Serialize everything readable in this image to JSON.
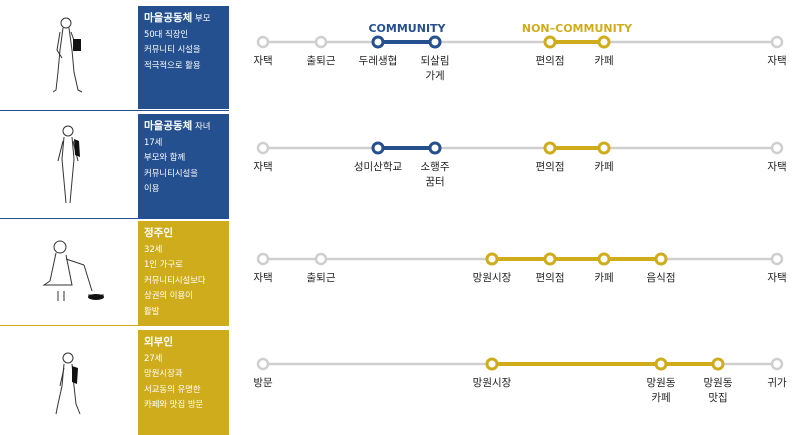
{
  "headers": {
    "community": "COMMUNITY",
    "noncommunity": "NON–COMMUNITY"
  },
  "colors": {
    "blue": "#25508f",
    "gold": "#cfac1c",
    "grey": "#cfcfcf",
    "text": "#222222"
  },
  "personas": [
    {
      "name": "마을공동체",
      "role": "부모",
      "lines": [
        "50대 직장인",
        "커뮤니티 시설을",
        "적극적으로 활용"
      ],
      "box_color": "blue",
      "icon": "walking-woman-with-bag-figure"
    },
    {
      "name": "마을공동체",
      "role": "자녀",
      "lines": [
        "17세",
        "부모와 함께",
        "커뮤니티시설을",
        "이용"
      ],
      "box_color": "blue",
      "icon": "standing-student-figure"
    },
    {
      "name": "정주인",
      "role": "",
      "lines": [
        "32세",
        "1인 가구로",
        "커뮤니티시설보다",
        "상권의 이용이",
        "활발"
      ],
      "box_color": "gold",
      "icon": "person-walking-dog-figure"
    },
    {
      "name": "외부인",
      "role": "",
      "lines": [
        "27세",
        "망원시장과",
        "서교동의 유명한",
        "카페와 맛집 방문"
      ],
      "box_color": "gold",
      "icon": "walking-visitor-figure"
    }
  ],
  "journeys": [
    {
      "stops": [
        {
          "label": "자택",
          "label2": "",
          "type": "grey"
        },
        {
          "label": "출퇴근",
          "label2": "",
          "type": "grey"
        },
        {
          "label": "두레생협",
          "label2": "",
          "type": "blue"
        },
        {
          "label": "되살림",
          "label2": "가게",
          "type": "blue"
        },
        {
          "label": "편의점",
          "label2": "",
          "type": "gold"
        },
        {
          "label": "카페",
          "label2": "",
          "type": "gold"
        },
        {
          "label": "자택",
          "label2": "",
          "type": "grey"
        }
      ]
    },
    {
      "stops": [
        {
          "label": "자택",
          "label2": "",
          "type": "grey"
        },
        {
          "label": "성미산학교",
          "label2": "",
          "type": "blue"
        },
        {
          "label": "소행주",
          "label2": "꿈터",
          "type": "blue"
        },
        {
          "label": "편의점",
          "label2": "",
          "type": "gold"
        },
        {
          "label": "카페",
          "label2": "",
          "type": "gold"
        },
        {
          "label": "자택",
          "label2": "",
          "type": "grey"
        }
      ]
    },
    {
      "stops": [
        {
          "label": "자택",
          "label2": "",
          "type": "grey"
        },
        {
          "label": "출퇴근",
          "label2": "",
          "type": "grey"
        },
        {
          "label": "망원시장",
          "label2": "",
          "type": "gold"
        },
        {
          "label": "편의점",
          "label2": "",
          "type": "gold"
        },
        {
          "label": "카페",
          "label2": "",
          "type": "gold"
        },
        {
          "label": "음식점",
          "label2": "",
          "type": "gold"
        },
        {
          "label": "자택",
          "label2": "",
          "type": "grey"
        }
      ]
    },
    {
      "stops": [
        {
          "label": "방문",
          "label2": "",
          "type": "grey"
        },
        {
          "label": "망원시장",
          "label2": "",
          "type": "gold"
        },
        {
          "label": "망원동",
          "label2": "카페",
          "type": "gold"
        },
        {
          "label": "망원동",
          "label2": "맛집",
          "type": "gold"
        },
        {
          "label": "귀가",
          "label2": "",
          "type": "grey"
        }
      ]
    }
  ]
}
